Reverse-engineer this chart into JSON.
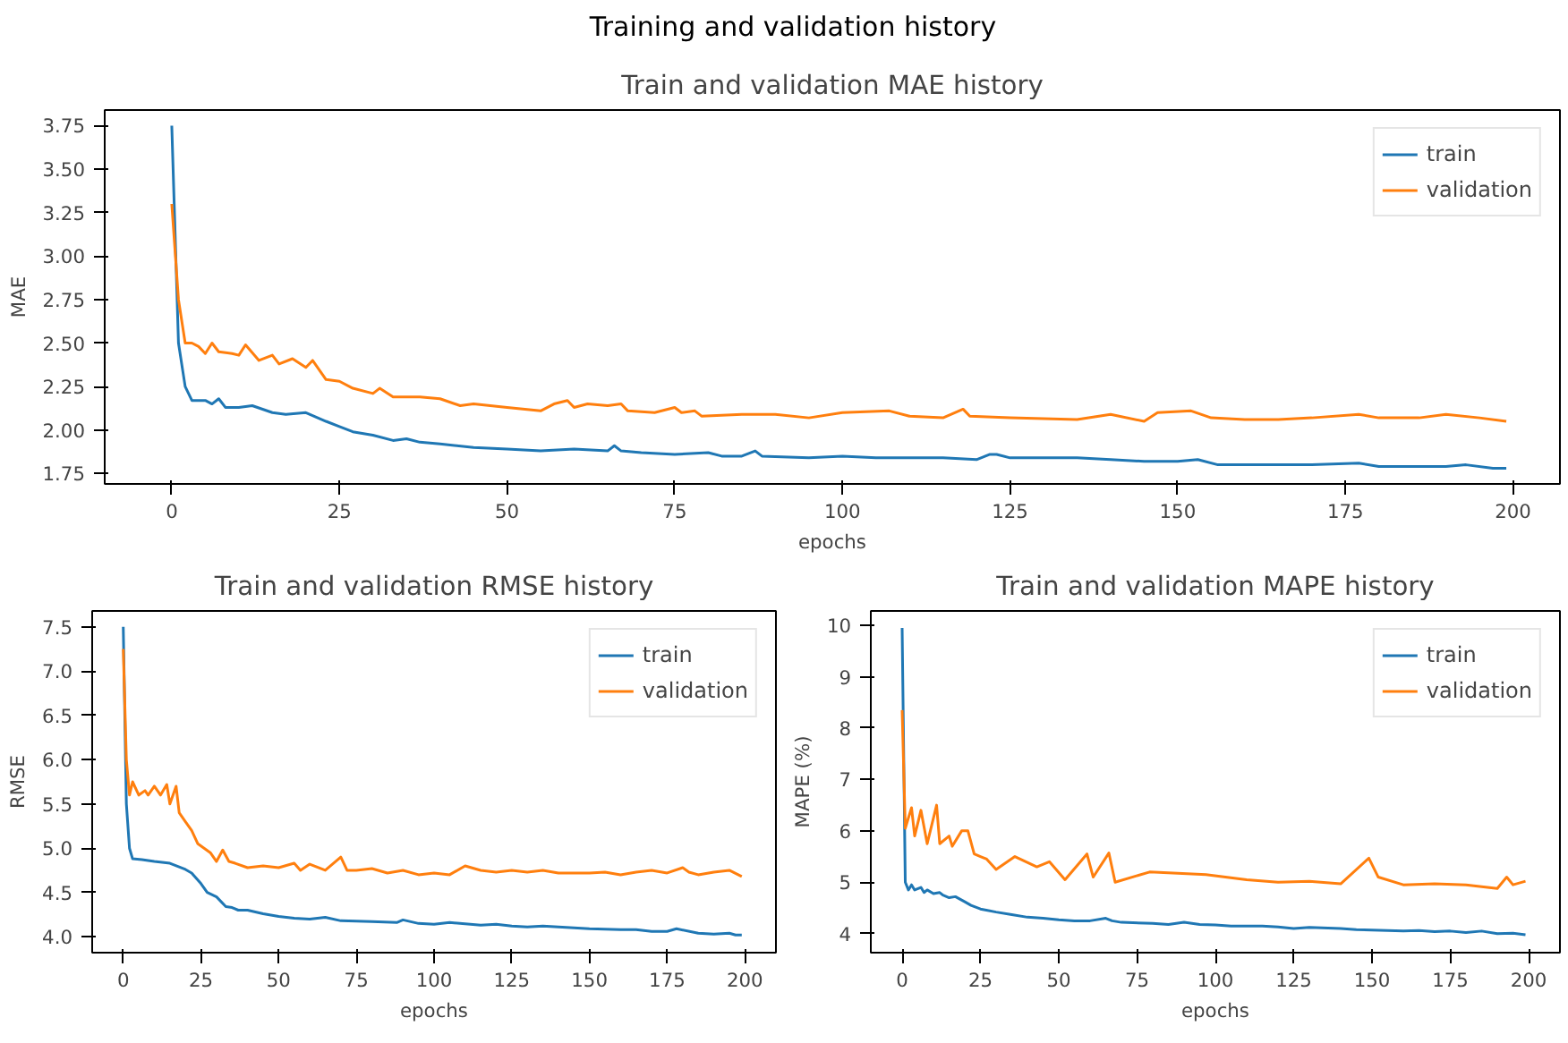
{
  "chart_data": [
    {
      "type": "line",
      "annotations": [
        "Training and validation history"
      ],
      "title": "Train and validation MAE history",
      "xlabel": "epochs",
      "ylabel": "MAE",
      "xlim": [
        -10,
        207
      ],
      "ylim": [
        1.69,
        3.84
      ],
      "xticks": [
        0,
        25,
        50,
        75,
        100,
        125,
        150,
        175,
        200
      ],
      "yticks": [
        {
          "value": 1.75,
          "label": "1.75"
        },
        {
          "value": 2.0,
          "label": "2.00"
        },
        {
          "value": 2.25,
          "label": "2.25"
        },
        {
          "value": 2.5,
          "label": "2.50"
        },
        {
          "value": 2.75,
          "label": "2.75"
        },
        {
          "value": 3.0,
          "label": "3.00"
        },
        {
          "value": 3.25,
          "label": "3.25"
        },
        {
          "value": 3.5,
          "label": "3.50"
        },
        {
          "value": 3.75,
          "label": "3.75"
        }
      ],
      "grid": false,
      "legend": "top right",
      "series": [
        {
          "name": "train",
          "color": "#1f77b4",
          "x": [
            0,
            1,
            2,
            3,
            5,
            6,
            7,
            8,
            10,
            12,
            15,
            17,
            20,
            23,
            25,
            27,
            30,
            33,
            35,
            37,
            40,
            45,
            50,
            55,
            60,
            65,
            66,
            67,
            70,
            75,
            80,
            82,
            85,
            87,
            88,
            95,
            100,
            105,
            115,
            120,
            122,
            123,
            125,
            135,
            140,
            145,
            150,
            153,
            156,
            160,
            170,
            177,
            180,
            190,
            193,
            197,
            199
          ],
          "values": [
            3.75,
            2.5,
            2.25,
            2.17,
            2.17,
            2.15,
            2.18,
            2.13,
            2.13,
            2.14,
            2.1,
            2.09,
            2.1,
            2.05,
            2.02,
            1.99,
            1.97,
            1.94,
            1.95,
            1.93,
            1.92,
            1.9,
            1.89,
            1.88,
            1.89,
            1.88,
            1.91,
            1.88,
            1.87,
            1.86,
            1.87,
            1.85,
            1.85,
            1.88,
            1.85,
            1.84,
            1.85,
            1.84,
            1.84,
            1.83,
            1.86,
            1.86,
            1.84,
            1.84,
            1.83,
            1.82,
            1.82,
            1.83,
            1.8,
            1.8,
            1.8,
            1.81,
            1.79,
            1.79,
            1.8,
            1.78,
            1.78
          ]
        },
        {
          "name": "validation",
          "color": "#ff7f0e",
          "x": [
            0,
            1,
            2,
            3,
            4,
            5,
            6,
            7,
            9,
            10,
            11,
            13,
            15,
            16,
            18,
            20,
            21,
            23,
            25,
            27,
            30,
            31,
            33,
            37,
            40,
            43,
            45,
            50,
            55,
            57,
            59,
            60,
            62,
            65,
            67,
            68,
            72,
            75,
            76,
            78,
            79,
            85,
            90,
            95,
            100,
            107,
            110,
            115,
            118,
            119,
            125,
            135,
            140,
            145,
            147,
            152,
            155,
            160,
            165,
            170,
            177,
            180,
            186,
            190,
            195,
            199
          ],
          "values": [
            3.3,
            2.75,
            2.5,
            2.5,
            2.48,
            2.44,
            2.5,
            2.45,
            2.44,
            2.43,
            2.49,
            2.4,
            2.43,
            2.38,
            2.41,
            2.36,
            2.4,
            2.29,
            2.28,
            2.24,
            2.21,
            2.24,
            2.19,
            2.19,
            2.18,
            2.14,
            2.15,
            2.13,
            2.11,
            2.15,
            2.17,
            2.13,
            2.15,
            2.14,
            2.15,
            2.11,
            2.1,
            2.13,
            2.1,
            2.11,
            2.08,
            2.09,
            2.09,
            2.07,
            2.1,
            2.11,
            2.08,
            2.07,
            2.12,
            2.08,
            2.07,
            2.06,
            2.09,
            2.05,
            2.1,
            2.11,
            2.07,
            2.06,
            2.06,
            2.07,
            2.09,
            2.07,
            2.07,
            2.09,
            2.07,
            2.05
          ]
        }
      ]
    },
    {
      "type": "line",
      "title": "Train and validation RMSE history",
      "xlabel": "epochs",
      "ylabel": "RMSE",
      "xlim": [
        -10,
        210
      ],
      "ylim": [
        3.82,
        7.68
      ],
      "xticks": [
        0,
        25,
        50,
        75,
        100,
        125,
        150,
        175,
        200
      ],
      "yticks": [
        {
          "value": 4.0,
          "label": "4.0"
        },
        {
          "value": 4.5,
          "label": "4.5"
        },
        {
          "value": 5.0,
          "label": "5.0"
        },
        {
          "value": 5.5,
          "label": "5.5"
        },
        {
          "value": 6.0,
          "label": "6.0"
        },
        {
          "value": 6.5,
          "label": "6.5"
        },
        {
          "value": 7.0,
          "label": "7.0"
        },
        {
          "value": 7.5,
          "label": "7.5"
        }
      ],
      "grid": false,
      "legend": "top right",
      "series": [
        {
          "name": "train",
          "color": "#1f77b4",
          "x": [
            0,
            1,
            2,
            3,
            6,
            10,
            15,
            20,
            22,
            25,
            27,
            30,
            33,
            35,
            37,
            40,
            45,
            50,
            55,
            60,
            65,
            70,
            80,
            88,
            90,
            95,
            100,
            105,
            115,
            120,
            125,
            130,
            135,
            145,
            150,
            160,
            165,
            170,
            175,
            178,
            185,
            190,
            195,
            197,
            199
          ],
          "values": [
            7.5,
            5.5,
            5.0,
            4.88,
            4.87,
            4.85,
            4.83,
            4.76,
            4.72,
            4.6,
            4.5,
            4.45,
            4.34,
            4.33,
            4.3,
            4.3,
            4.26,
            4.23,
            4.21,
            4.2,
            4.22,
            4.18,
            4.17,
            4.16,
            4.19,
            4.15,
            4.14,
            4.16,
            4.13,
            4.14,
            4.12,
            4.11,
            4.12,
            4.1,
            4.09,
            4.08,
            4.08,
            4.06,
            4.06,
            4.09,
            4.04,
            4.03,
            4.04,
            4.02,
            4.02
          ]
        },
        {
          "name": "validation",
          "color": "#ff7f0e",
          "x": [
            0,
            1,
            2,
            3,
            5,
            7,
            8,
            10,
            12,
            14,
            15,
            17,
            18,
            20,
            22,
            24,
            26,
            28,
            30,
            32,
            34,
            36,
            40,
            45,
            50,
            55,
            57,
            60,
            65,
            70,
            72,
            75,
            80,
            85,
            90,
            95,
            100,
            105,
            110,
            115,
            120,
            125,
            130,
            135,
            140,
            145,
            150,
            155,
            160,
            165,
            170,
            175,
            180,
            182,
            185,
            190,
            195,
            199
          ],
          "values": [
            7.25,
            6.0,
            5.6,
            5.75,
            5.6,
            5.65,
            5.6,
            5.7,
            5.6,
            5.72,
            5.5,
            5.7,
            5.4,
            5.3,
            5.2,
            5.05,
            5.0,
            4.95,
            4.85,
            4.98,
            4.85,
            4.83,
            4.78,
            4.8,
            4.78,
            4.83,
            4.75,
            4.82,
            4.75,
            4.9,
            4.75,
            4.75,
            4.77,
            4.72,
            4.75,
            4.7,
            4.72,
            4.7,
            4.8,
            4.75,
            4.73,
            4.75,
            4.73,
            4.75,
            4.72,
            4.72,
            4.72,
            4.73,
            4.7,
            4.73,
            4.75,
            4.72,
            4.78,
            4.73,
            4.7,
            4.73,
            4.75,
            4.68
          ]
        }
      ]
    },
    {
      "type": "line",
      "title": "Train and validation MAPE history",
      "xlabel": "epochs",
      "ylabel": "MAPE (%)",
      "xlim": [
        -10,
        210
      ],
      "ylim": [
        3.63,
        10.28
      ],
      "xticks": [
        0,
        25,
        50,
        75,
        100,
        125,
        150,
        175,
        200
      ],
      "yticks": [
        4,
        5,
        6,
        7,
        8,
        9,
        10
      ],
      "grid": false,
      "legend": "top right",
      "series": [
        {
          "name": "train",
          "color": "#1f77b4",
          "x": [
            0,
            1,
            2,
            3,
            4,
            6,
            7,
            8,
            10,
            12,
            13,
            15,
            17,
            20,
            22,
            25,
            30,
            35,
            40,
            45,
            50,
            55,
            60,
            65,
            67,
            70,
            80,
            85,
            90,
            95,
            100,
            105,
            110,
            115,
            120,
            125,
            130,
            140,
            145,
            150,
            160,
            165,
            170,
            175,
            180,
            185,
            190,
            195,
            199
          ],
          "values": [
            9.95,
            5.0,
            4.85,
            4.95,
            4.85,
            4.9,
            4.8,
            4.85,
            4.78,
            4.8,
            4.75,
            4.7,
            4.72,
            4.62,
            4.55,
            4.48,
            4.42,
            4.37,
            4.32,
            4.3,
            4.27,
            4.25,
            4.25,
            4.3,
            4.25,
            4.22,
            4.2,
            4.18,
            4.22,
            4.18,
            4.17,
            4.15,
            4.15,
            4.15,
            4.13,
            4.1,
            4.12,
            4.1,
            4.08,
            4.07,
            4.05,
            4.06,
            4.04,
            4.05,
            4.02,
            4.05,
            4.0,
            4.01,
            3.98
          ]
        },
        {
          "name": "validation",
          "color": "#ff7f0e",
          "x": [
            0,
            1,
            3,
            4,
            6,
            8,
            11,
            12,
            15,
            16,
            19,
            21,
            23,
            25,
            27,
            30,
            36,
            43,
            47,
            52,
            59,
            61,
            66,
            68,
            79,
            97,
            110,
            120,
            130,
            140,
            149,
            152,
            160,
            170,
            180,
            190,
            193,
            195,
            199
          ],
          "values": [
            8.35,
            6.05,
            6.45,
            5.9,
            6.4,
            5.75,
            6.5,
            5.75,
            5.9,
            5.7,
            6.0,
            6.0,
            5.55,
            5.5,
            5.45,
            5.25,
            5.5,
            5.3,
            5.4,
            5.05,
            5.55,
            5.1,
            5.57,
            5.0,
            5.2,
            5.15,
            5.05,
            5.0,
            5.02,
            4.97,
            5.47,
            5.1,
            4.95,
            4.97,
            4.95,
            4.88,
            5.1,
            4.95,
            5.02
          ]
        }
      ]
    }
  ]
}
